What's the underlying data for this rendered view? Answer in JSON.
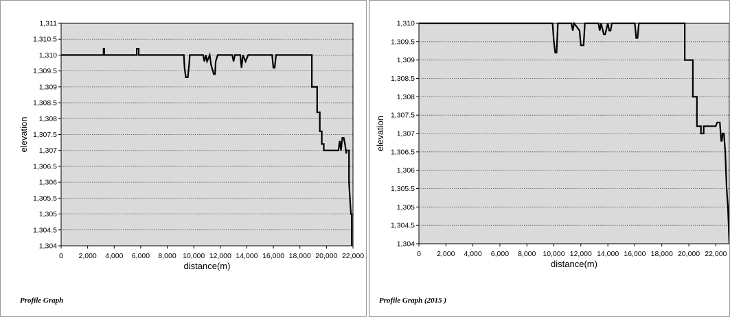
{
  "chart_data": [
    {
      "type": "line",
      "caption": "Profile Graph",
      "xlabel": "distance(m)",
      "ylabel": "elevation",
      "xlim": [
        0,
        22000
      ],
      "ylim": [
        1304,
        1311
      ],
      "x_ticks": [
        0,
        2000,
        4000,
        6000,
        8000,
        10000,
        12000,
        14000,
        16000,
        18000,
        20000,
        22000
      ],
      "x_tick_labels": [
        "0",
        "2,000",
        "4,000",
        "6,000",
        "8,000",
        "10,000",
        "12,000",
        "14,000",
        "16,000",
        "18,000",
        "20,000",
        "22,000"
      ],
      "y_ticks": [
        1304,
        1304.5,
        1305,
        1305.5,
        1306,
        1306.5,
        1307,
        1307.5,
        1308,
        1308.5,
        1309,
        1309.5,
        1310,
        1310.5,
        1311
      ],
      "y_tick_labels": [
        "1,304",
        "1,304.5",
        "1,305",
        "1,305.5",
        "1,306",
        "1,306.5",
        "1,307",
        "1,307.5",
        "1,308",
        "1,308.5",
        "1,309",
        "1,309.5",
        "1,310",
        "1,310.5",
        "1,311"
      ],
      "grid": true,
      "series": [
        {
          "x": [
            0,
            3200,
            3200,
            3250,
            3250,
            5700,
            5700,
            5850,
            5850,
            9250,
            9300,
            9400,
            9550,
            9650,
            9700,
            10700,
            10800,
            10900,
            11000,
            11200,
            11300,
            11500,
            11600,
            11650,
            11800,
            11900,
            12900,
            13000,
            13100,
            13500,
            13600,
            13700,
            13900,
            14100,
            14200,
            15900,
            16000,
            16100,
            16200,
            18900,
            18900,
            19300,
            19300,
            19500,
            19500,
            19650,
            19650,
            19800,
            19800,
            20900,
            21000,
            21100,
            21200,
            21300,
            21400,
            21500,
            21500,
            21600,
            21700,
            21700,
            21800,
            21850,
            21900,
            21900
          ],
          "y": [
            1310,
            1310,
            1310.2,
            1310.2,
            1310,
            1310,
            1310.2,
            1310.2,
            1310,
            1310,
            1309.6,
            1309.3,
            1309.3,
            1309.7,
            1310,
            1310,
            1309.8,
            1310,
            1309.8,
            1310,
            1309.7,
            1309.4,
            1309.4,
            1309.8,
            1310,
            1310,
            1310,
            1309.8,
            1310,
            1310,
            1309.6,
            1310,
            1309.8,
            1310,
            1310,
            1310,
            1309.6,
            1309.6,
            1310,
            1310,
            1309,
            1309,
            1308.2,
            1308.2,
            1307.6,
            1307.6,
            1307.2,
            1307.2,
            1307,
            1307,
            1307.3,
            1307,
            1307.4,
            1307.4,
            1307.2,
            1306.9,
            1307,
            1307,
            1307,
            1306,
            1305.3,
            1305,
            1305,
            1304
          ]
        }
      ]
    },
    {
      "type": "line",
      "caption": "Profile Graph (2015 )",
      "xlabel": "distance(m)",
      "ylabel": "elevation",
      "xlim": [
        0,
        23000
      ],
      "ylim": [
        1304,
        1310
      ],
      "x_ticks": [
        0,
        2000,
        4000,
        6000,
        8000,
        10000,
        12000,
        14000,
        16000,
        18000,
        20000,
        22000
      ],
      "x_tick_labels": [
        "0",
        "2,000",
        "4,000",
        "6,000",
        "8,000",
        "10,000",
        "12,000",
        "14,000",
        "16,000",
        "18,000",
        "20,000",
        "22,000"
      ],
      "y_ticks": [
        1304,
        1304.5,
        1305,
        1305.5,
        1306,
        1306.5,
        1307,
        1307.5,
        1308,
        1308.5,
        1309,
        1309.5,
        1310
      ],
      "y_tick_labels": [
        "1,304",
        "1,304.5",
        "1,305",
        "1,305.5",
        "1,306",
        "1,306.5",
        "1,307",
        "1,307.5",
        "1,308",
        "1,308.5",
        "1,309",
        "1,309.5",
        "1,310"
      ],
      "grid": true,
      "series": [
        {
          "x": [
            0,
            9900,
            10000,
            10100,
            10200,
            10300,
            11300,
            11400,
            11500,
            11900,
            12000,
            12200,
            12300,
            13300,
            13400,
            13500,
            13700,
            13800,
            14000,
            14100,
            14200,
            14300,
            16000,
            16100,
            16200,
            16300,
            19700,
            19700,
            20300,
            20300,
            20600,
            20600,
            20900,
            20900,
            21100,
            21100,
            21900,
            22000,
            22100,
            22300,
            22400,
            22450,
            22500,
            22600,
            22700,
            22800,
            22900,
            23000
          ],
          "y": [
            1310,
            1310,
            1309.5,
            1309.2,
            1309.2,
            1310,
            1310,
            1309.8,
            1310,
            1309.8,
            1309.4,
            1309.4,
            1310,
            1310,
            1309.8,
            1310,
            1309.7,
            1309.7,
            1310,
            1309.8,
            1309.8,
            1310,
            1310,
            1309.6,
            1309.6,
            1310,
            1310,
            1309,
            1309,
            1308,
            1308,
            1307.2,
            1307.2,
            1307,
            1307,
            1307.2,
            1307.2,
            1307.2,
            1307.3,
            1307.3,
            1306.8,
            1306.8,
            1307,
            1307,
            1306.5,
            1305.5,
            1305,
            1304
          ]
        }
      ]
    }
  ]
}
